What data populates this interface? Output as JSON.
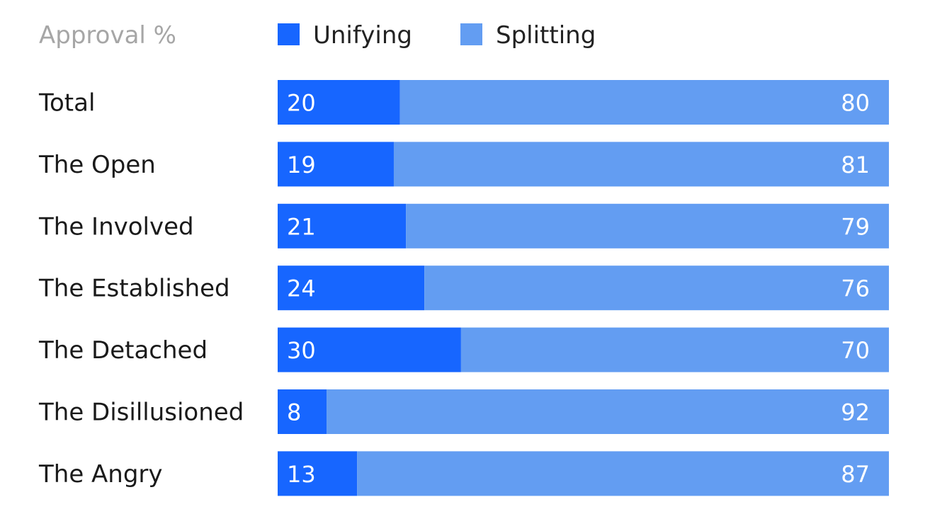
{
  "chart_data": {
    "type": "bar",
    "orientation": "horizontal",
    "stacked": true,
    "title": "",
    "header_label": "Approval %",
    "categories": [
      "Total",
      "The Open",
      "The Involved",
      "The Established",
      "The Detached",
      "The Disillusioned",
      "The Angry"
    ],
    "series": [
      {
        "name": "Unifying",
        "color": "#1766ff",
        "values": [
          20,
          19,
          21,
          24,
          30,
          8,
          13
        ]
      },
      {
        "name": "Splitting",
        "color": "#639df2",
        "values": [
          80,
          81,
          79,
          76,
          70,
          92,
          87
        ]
      }
    ],
    "xlim": [
      0,
      100
    ],
    "grid": false,
    "legend_position": "top"
  }
}
